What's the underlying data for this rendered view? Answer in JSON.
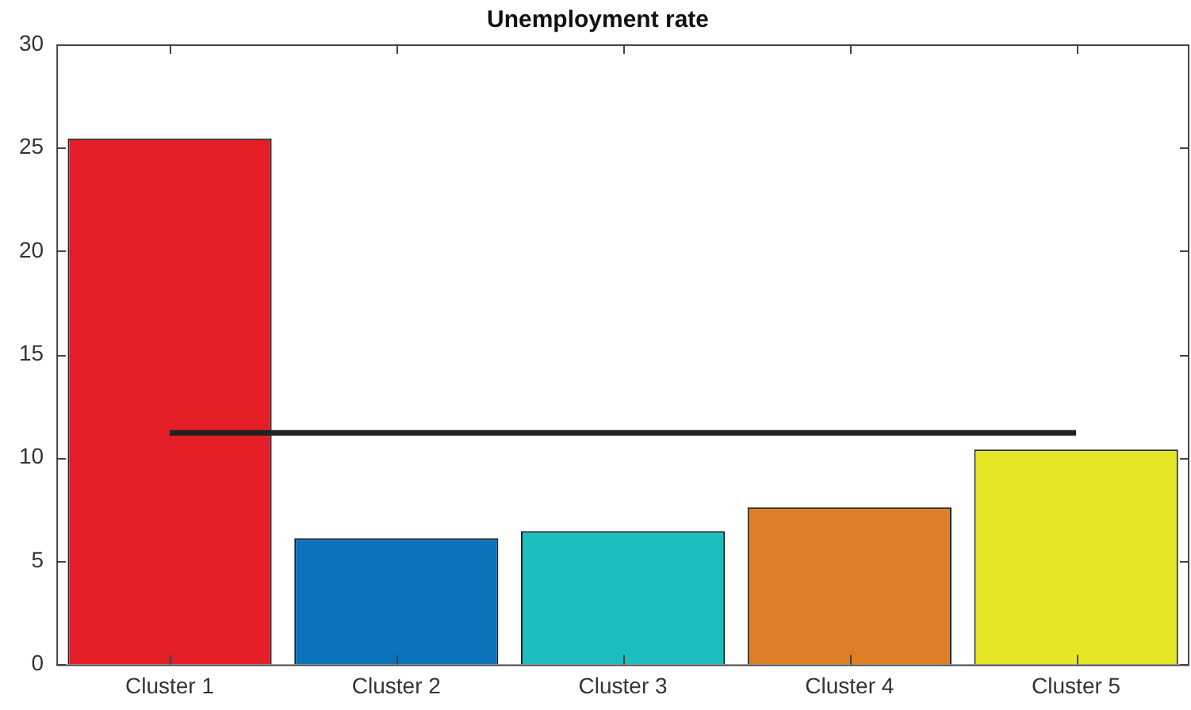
{
  "chart_data": {
    "type": "bar",
    "title": "Unemployment rate",
    "categories": [
      "Cluster 1",
      "Cluster 2",
      "Cluster 3",
      "Cluster 4",
      "Cluster 5"
    ],
    "series": [
      {
        "colors": [
          "#e31e27",
          "#0c72bb",
          "#1bbdbd",
          "#de7e26",
          "#e6e626"
        ],
        "values": [
          25.45,
          6.1,
          6.45,
          7.6,
          10.4
        ]
      },
      {
        "type": "line",
        "color": "#222222",
        "values": [
          11.2,
          11.2,
          11.2,
          11.2,
          11.2
        ]
      }
    ],
    "ylim": [
      0,
      30
    ],
    "yticks": [
      0,
      5,
      10,
      15,
      20,
      25,
      30
    ],
    "grid": false,
    "legend": false,
    "marker": "none"
  }
}
